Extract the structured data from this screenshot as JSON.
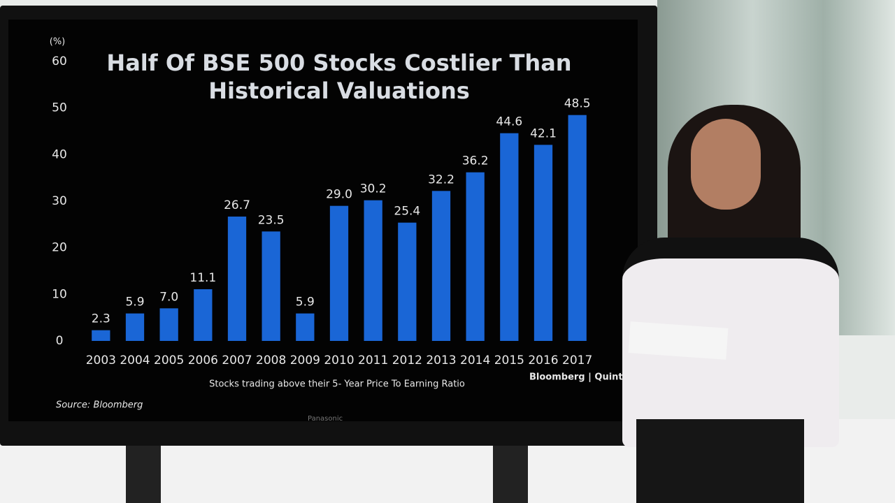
{
  "chart_data": {
    "type": "bar",
    "title": "Half Of BSE 500 Stocks Costlier Than Historical Valuations",
    "y_unit": "(%)",
    "x_label": "Stocks trading above their 5- Year Price To Earning Ratio",
    "source": "Source: Bloomberg",
    "brand": "Bloomberg | Quint",
    "categories": [
      "2003",
      "2004",
      "2005",
      "2006",
      "2007",
      "2008",
      "2009",
      "2010",
      "2011",
      "2012",
      "2013",
      "2014",
      "2015",
      "2016",
      "2017"
    ],
    "values": [
      2.3,
      5.9,
      7.0,
      11.1,
      26.7,
      23.5,
      5.9,
      29.0,
      30.2,
      25.4,
      32.2,
      36.2,
      44.6,
      42.1,
      48.5
    ],
    "value_labels": [
      "2.3",
      "5.9",
      "7.0",
      "11.1",
      "26.7",
      "23.5",
      "5.9",
      "29.0",
      "30.2",
      "25.4",
      "32.2",
      "36.2",
      "44.6",
      "42.1",
      "48.5"
    ],
    "color": "#1a66d6",
    "ylim": [
      0,
      60
    ],
    "yticks": [
      0,
      10,
      20,
      30,
      40,
      50,
      60
    ],
    "grid": false
  },
  "scene": {
    "tv_brand": "Panasonic"
  }
}
